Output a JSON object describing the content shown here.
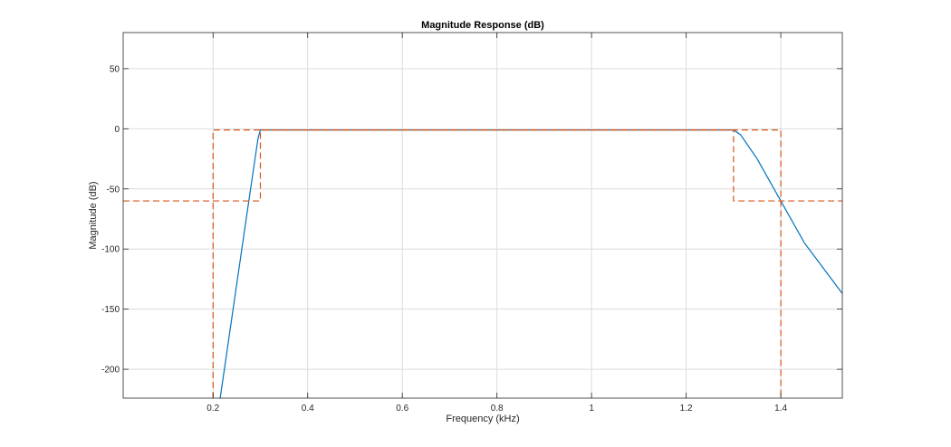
{
  "chart_data": {
    "type": "line",
    "title": "Magnitude Response (dB)",
    "xlabel": "Frequency (kHz)",
    "ylabel": "Magnitude (dB)",
    "xlim": [
      0.01,
      1.53
    ],
    "ylim": [
      -224,
      80
    ],
    "xticks": [
      0.2,
      0.4,
      0.6,
      0.8,
      1.0,
      1.2,
      1.4
    ],
    "xtick_labels": [
      "0.2",
      "0.4",
      "0.6",
      "0.8",
      "1",
      "1.2",
      "1.4"
    ],
    "yticks": [
      -200,
      -150,
      -100,
      -50,
      0,
      50
    ],
    "ytick_labels": [
      "-200",
      "-150",
      "-100",
      "-50",
      "0",
      "50"
    ],
    "grid": true,
    "series": [
      {
        "style": "solid",
        "color": "#0072BD",
        "x": [
          0.215,
          0.27,
          0.295,
          0.3,
          1.0,
          1.3,
          1.315,
          1.35,
          1.4,
          1.45,
          1.53
        ],
        "y": [
          -224,
          -75,
          -8,
          -1,
          -1,
          -1,
          -5,
          -25,
          -60,
          -95,
          -137
        ]
      },
      {
        "style": "dashed",
        "color": "#D95319",
        "x": [
          0.01,
          0.3,
          0.3,
          1.3,
          1.3,
          1.53
        ],
        "y": [
          -60,
          -60,
          -1,
          -1,
          -60,
          -60
        ]
      },
      {
        "style": "dashed",
        "color": "#D95319",
        "x": [
          0.2,
          0.2,
          1.4,
          1.4
        ],
        "y": [
          -224,
          -1,
          -1,
          -224
        ]
      }
    ]
  }
}
